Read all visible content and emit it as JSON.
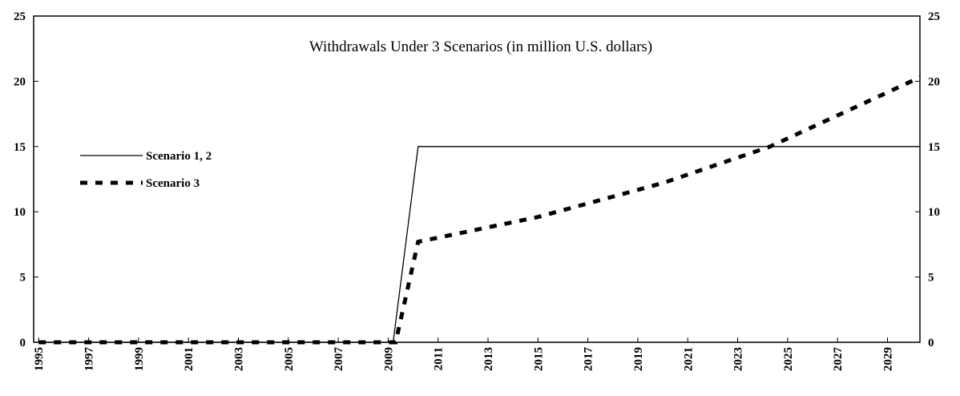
{
  "chart_data": {
    "type": "line",
    "title": "Withdrawals Under 3 Scenarios (in million U.S. dollars)",
    "series": [
      {
        "name": "Scenario 1, 2",
        "color": "#000000",
        "style": "solid",
        "x": [
          1995,
          2009.2,
          2010.2,
          2030.3
        ],
        "values": [
          0,
          0,
          15,
          15
        ]
      },
      {
        "name": "Scenario 3",
        "color": "#000000",
        "style": "dashed",
        "x": [
          1995,
          2009.3,
          2010.2,
          2015,
          2020,
          2024.3,
          2030.3
        ],
        "values": [
          0,
          0,
          7.7,
          9.6,
          12.2,
          15,
          20.3
        ]
      }
    ],
    "xlim": [
      1994.8,
      2030.3
    ],
    "xticks": [
      1995,
      1997,
      1999,
      2001,
      2003,
      2005,
      2007,
      2009,
      2011,
      2013,
      2015,
      2017,
      2019,
      2021,
      2023,
      2025,
      2027,
      2029
    ],
    "ylim": [
      0,
      25
    ],
    "yticks": [
      0,
      5,
      10,
      15,
      20,
      25
    ],
    "y2lim": [
      0,
      25
    ],
    "y2ticks": [
      0,
      5,
      10,
      15,
      20,
      25
    ],
    "legend": "left"
  }
}
